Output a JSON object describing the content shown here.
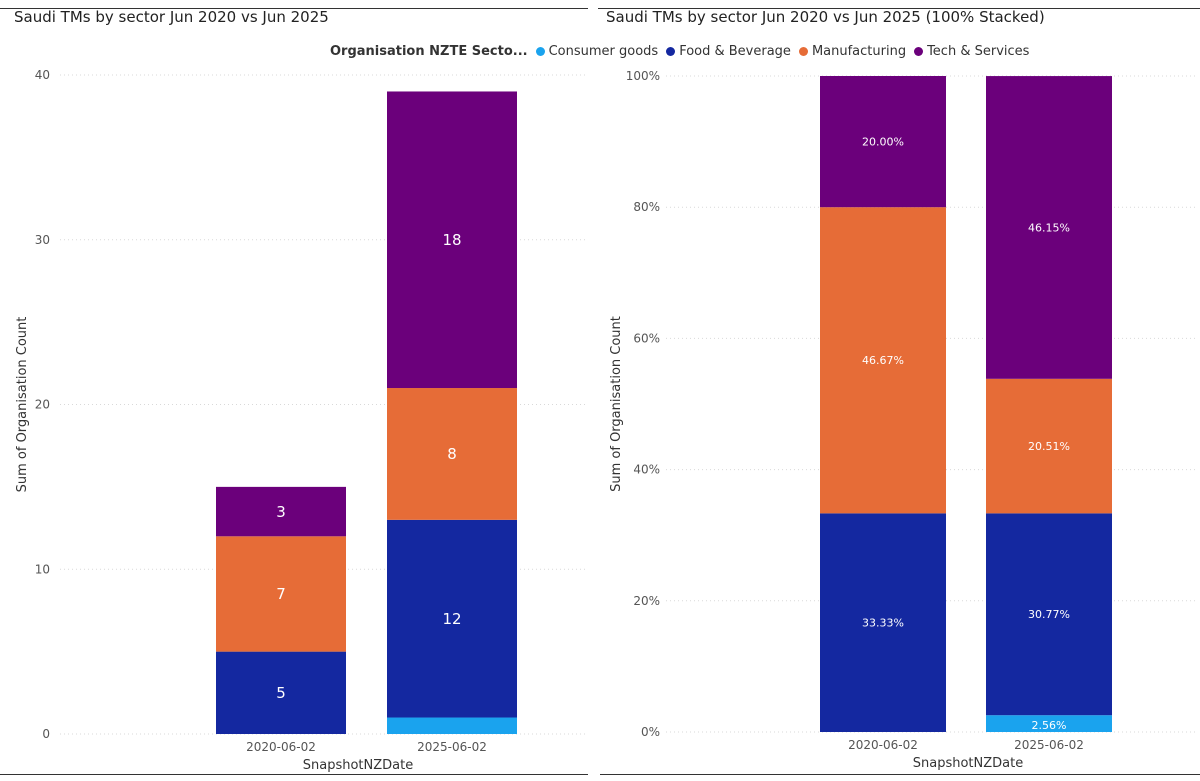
{
  "legend": {
    "title": "Organisation NZTE Secto...",
    "items": [
      {
        "label": "Consumer goods",
        "color": "#1aa3ee"
      },
      {
        "label": "Food & Beverage",
        "color": "#1428a0"
      },
      {
        "label": "Manufacturing",
        "color": "#e66c37"
      },
      {
        "label": "Tech & Services",
        "color": "#6b007b"
      }
    ]
  },
  "chart_data": [
    {
      "type": "bar",
      "stacked": true,
      "title": "Saudi TMs by sector Jun 2020 vs Jun 2025",
      "xlabel": "SnapshotNZDate",
      "ylabel": "Sum of Organisation Count",
      "ylim": [
        0,
        40
      ],
      "yticks": [
        "0",
        "10",
        "20",
        "30",
        "40"
      ],
      "categories": [
        "2020-06-02",
        "2025-06-02"
      ],
      "series": [
        {
          "name": "Consumer goods",
          "color": "#1aa3ee",
          "values": [
            0,
            1
          ],
          "labels": [
            "",
            ""
          ]
        },
        {
          "name": "Food & Beverage",
          "color": "#1428a0",
          "values": [
            5,
            12
          ],
          "labels": [
            "5",
            "12"
          ]
        },
        {
          "name": "Manufacturing",
          "color": "#e66c37",
          "values": [
            7,
            8
          ],
          "labels": [
            "7",
            "8"
          ]
        },
        {
          "name": "Tech & Services",
          "color": "#6b007b",
          "values": [
            3,
            18
          ],
          "labels": [
            "3",
            "18"
          ]
        }
      ]
    },
    {
      "type": "bar",
      "stacked": true,
      "percent": true,
      "title": "Saudi TMs by sector Jun 2020 vs Jun 2025 (100% Stacked)",
      "xlabel": "SnapshotNZDate",
      "ylabel": "Sum of Organisation Count",
      "ylim": [
        0,
        100
      ],
      "yticks": [
        "0%",
        "20%",
        "40%",
        "60%",
        "80%",
        "100%"
      ],
      "categories": [
        "2020-06-02",
        "2025-06-02"
      ],
      "series": [
        {
          "name": "Consumer goods",
          "color": "#1aa3ee",
          "values": [
            0,
            2.56
          ],
          "labels": [
            "",
            "2.56%"
          ]
        },
        {
          "name": "Food & Beverage",
          "color": "#1428a0",
          "values": [
            33.33,
            30.77
          ],
          "labels": [
            "33.33%",
            "30.77%"
          ]
        },
        {
          "name": "Manufacturing",
          "color": "#e66c37",
          "values": [
            46.67,
            20.51
          ],
          "labels": [
            "46.67%",
            "20.51%"
          ]
        },
        {
          "name": "Tech & Services",
          "color": "#6b007b",
          "values": [
            20.0,
            46.15
          ],
          "labels": [
            "20.00%",
            "46.15%"
          ]
        }
      ]
    }
  ]
}
